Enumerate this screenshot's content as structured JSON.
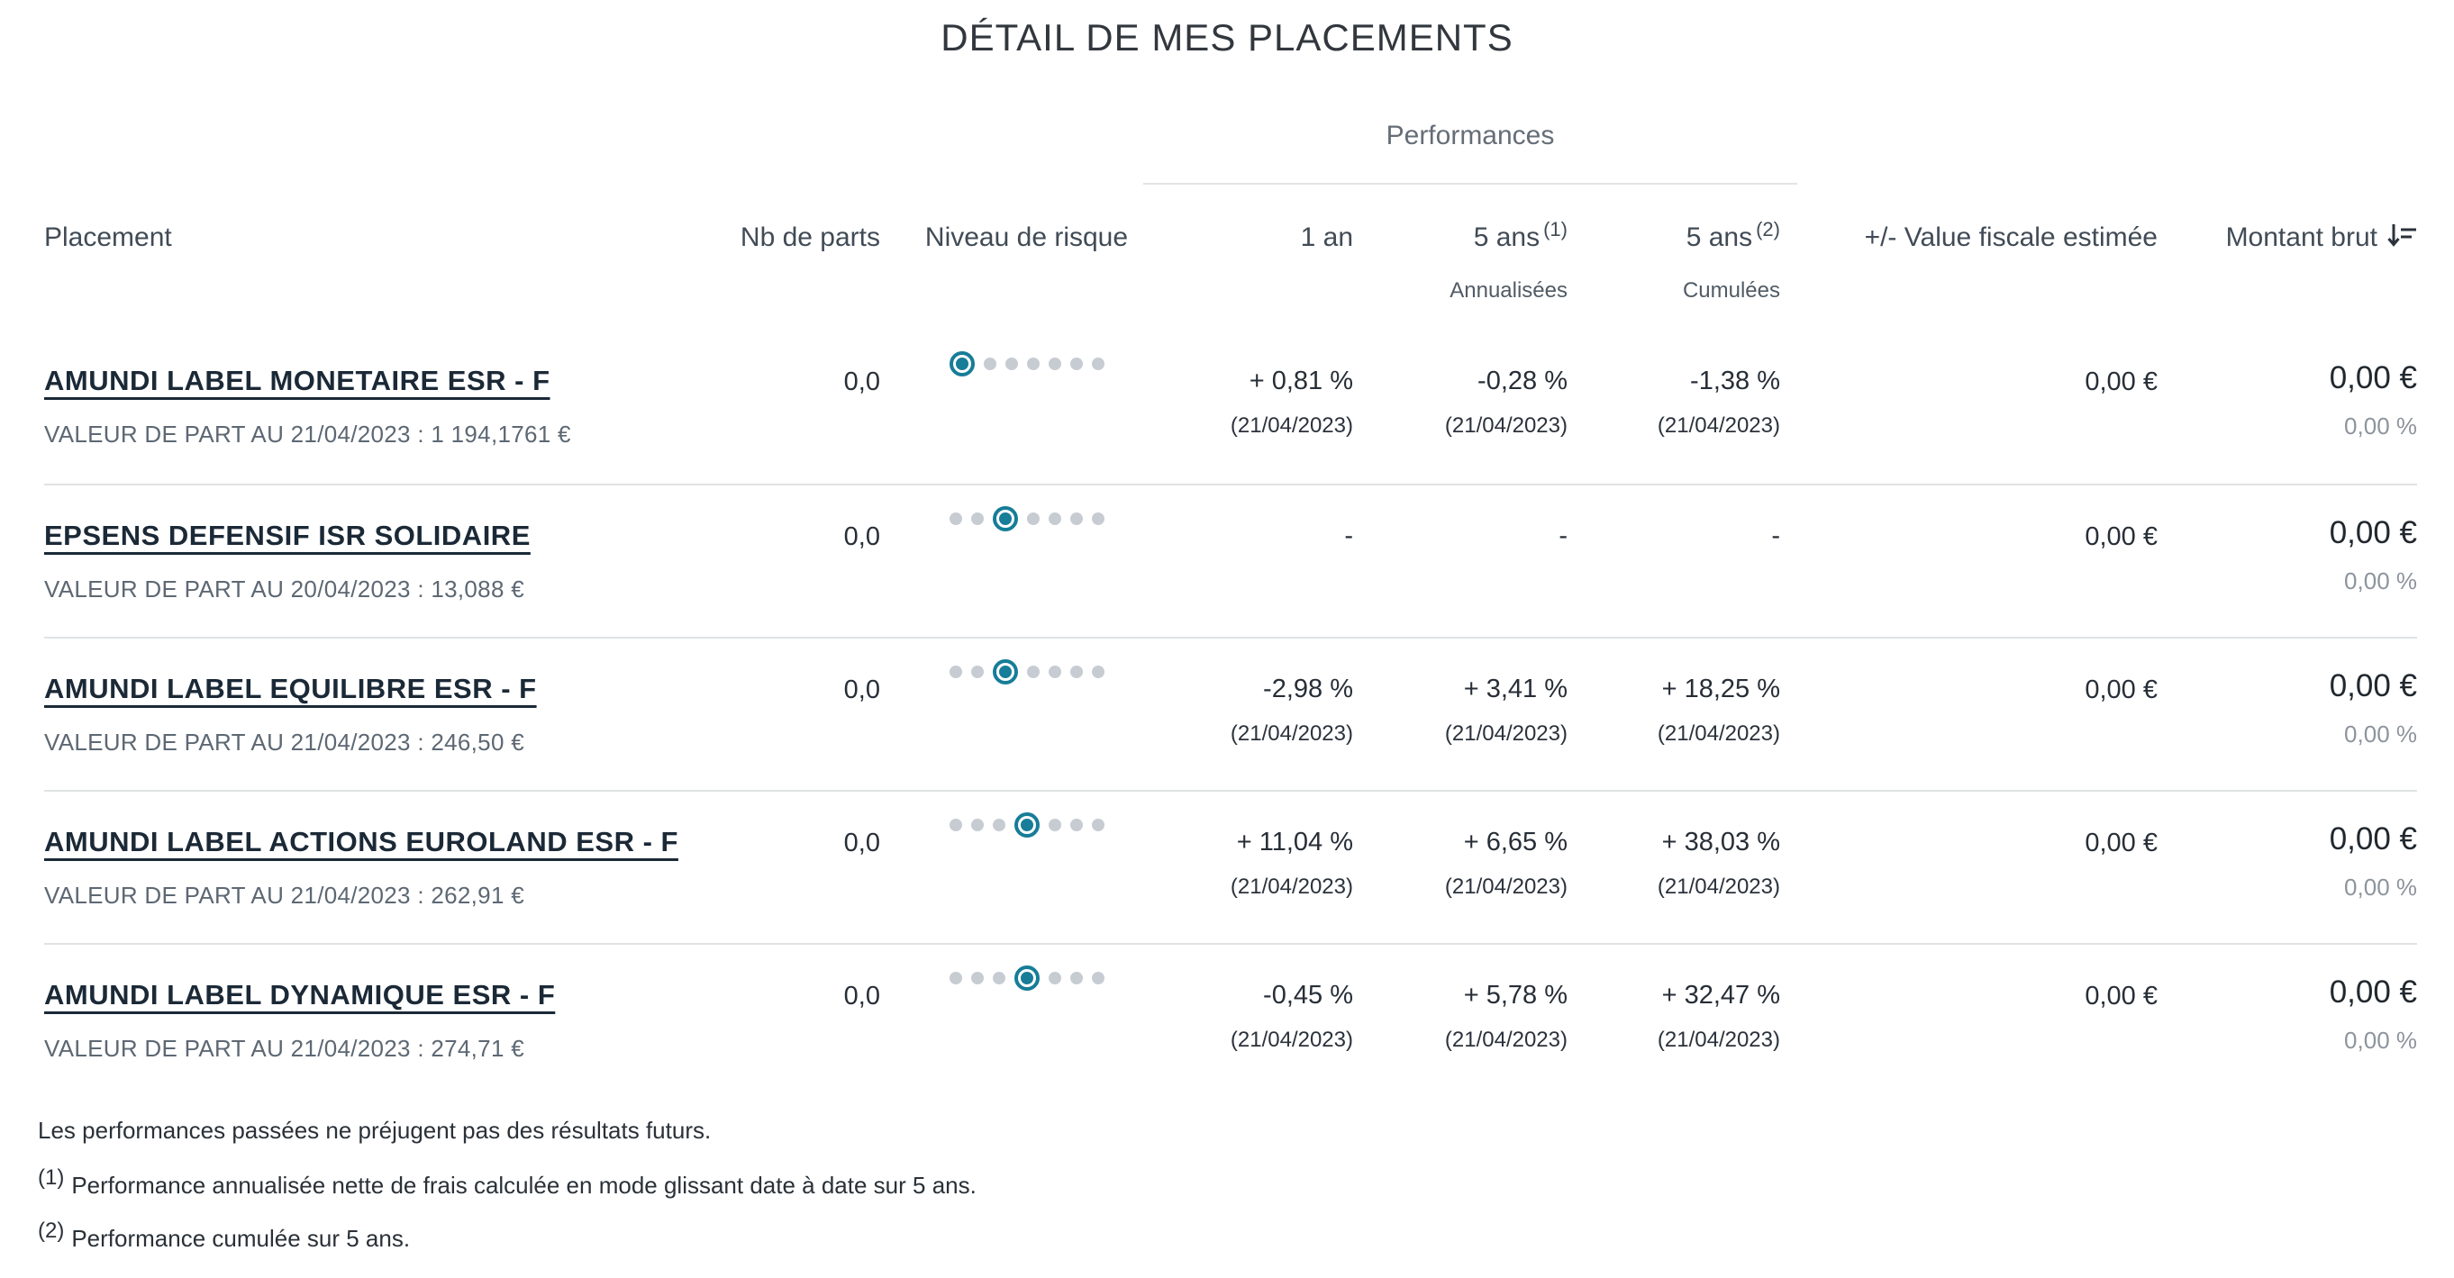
{
  "title": "DÉTAIL DE MES PLACEMENTS",
  "colors": {
    "accent_teal": "#177d98",
    "dot_inactive": "#c7ccd3",
    "divider": "#e0e2e4",
    "fund_name": "#1b2937",
    "muted_text": "#5d6873",
    "pct_muted": "#8d949d"
  },
  "table": {
    "group_header": "Performances",
    "headers": {
      "placement": "Placement",
      "nb_parts": "Nb de parts",
      "risque": "Niveau de risque",
      "an1": "1 an",
      "ans5_1": "5 ans",
      "ans5_1_sup": "(1)",
      "ans5_1_sub": "Annualisées",
      "ans5_2": "5 ans",
      "ans5_2_sup": "(2)",
      "ans5_2_sub": "Cumulées",
      "value_fiscale": "+/- Value fiscale estimée",
      "montant_brut": "Montant brut"
    },
    "rows": [
      {
        "name": "AMUNDI LABEL MONETAIRE ESR - F",
        "valeur_part": "VALEUR DE PART AU 21/04/2023 : 1 194,1761 €",
        "nb_parts": "0,0",
        "risk_level": 1,
        "risk_max": 7,
        "perf_1an": "+ 0,81 %",
        "date_1an": "(21/04/2023)",
        "perf_5ans_annualisees": "-0,28 %",
        "date_5ans_annualisees": "(21/04/2023)",
        "perf_5ans_cumulees": "-1,38 %",
        "date_5ans_cumulees": "(21/04/2023)",
        "value_fiscale": "0,00 €",
        "montant_brut": "0,00 €",
        "montant_pct": "0,00 %"
      },
      {
        "name": "EPSENS DEFENSIF ISR SOLIDAIRE",
        "valeur_part": "VALEUR DE PART AU 20/04/2023 : 13,088 €",
        "nb_parts": "0,0",
        "risk_level": 3,
        "risk_max": 7,
        "perf_1an": "-",
        "date_1an": "",
        "perf_5ans_annualisees": "-",
        "date_5ans_annualisees": "",
        "perf_5ans_cumulees": "-",
        "date_5ans_cumulees": "",
        "value_fiscale": "0,00 €",
        "montant_brut": "0,00 €",
        "montant_pct": "0,00 %"
      },
      {
        "name": "AMUNDI LABEL EQUILIBRE ESR - F",
        "valeur_part": "VALEUR DE PART AU 21/04/2023 : 246,50 €",
        "nb_parts": "0,0",
        "risk_level": 3,
        "risk_max": 7,
        "perf_1an": "-2,98 %",
        "date_1an": "(21/04/2023)",
        "perf_5ans_annualisees": "+ 3,41 %",
        "date_5ans_annualisees": "(21/04/2023)",
        "perf_5ans_cumulees": "+ 18,25 %",
        "date_5ans_cumulees": "(21/04/2023)",
        "value_fiscale": "0,00 €",
        "montant_brut": "0,00 €",
        "montant_pct": "0,00 %"
      },
      {
        "name": "AMUNDI LABEL ACTIONS EUROLAND ESR - F",
        "valeur_part": "VALEUR DE PART AU 21/04/2023 : 262,91 €",
        "nb_parts": "0,0",
        "risk_level": 4,
        "risk_max": 7,
        "perf_1an": "+ 11,04 %",
        "date_1an": "(21/04/2023)",
        "perf_5ans_annualisees": "+ 6,65 %",
        "date_5ans_annualisees": "(21/04/2023)",
        "perf_5ans_cumulees": "+ 38,03 %",
        "date_5ans_cumulees": "(21/04/2023)",
        "value_fiscale": "0,00 €",
        "montant_brut": "0,00 €",
        "montant_pct": "0,00 %"
      },
      {
        "name": "AMUNDI LABEL DYNAMIQUE ESR - F",
        "valeur_part": "VALEUR DE PART AU 21/04/2023 : 274,71 €",
        "nb_parts": "0,0",
        "risk_level": 4,
        "risk_max": 7,
        "perf_1an": "-0,45 %",
        "date_1an": "(21/04/2023)",
        "perf_5ans_annualisees": "+ 5,78 %",
        "date_5ans_annualisees": "(21/04/2023)",
        "perf_5ans_cumulees": "+ 32,47 %",
        "date_5ans_cumulees": "(21/04/2023)",
        "value_fiscale": "0,00 €",
        "montant_brut": "0,00 €",
        "montant_pct": "0,00 %"
      }
    ]
  },
  "footnotes": {
    "disclaimer": "Les performances passées ne préjugent pas des résultats futurs.",
    "note1_sup": "(1)",
    "note1": "Performance annualisée nette de frais calculée en mode glissant date à date sur 5 ans.",
    "note2_sup": "(2)",
    "note2": "Performance cumulée sur 5 ans."
  }
}
